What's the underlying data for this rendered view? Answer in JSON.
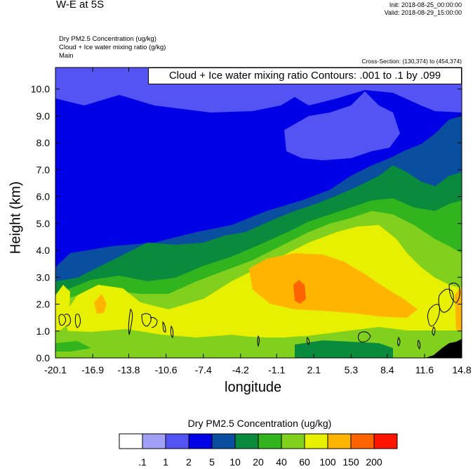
{
  "header": {
    "title": "W-E at 5S",
    "init": "Init: 2018-08-25_00:00:00",
    "valid": "Valid: 2018-08-29_15:00:00",
    "field_line_1": "Dry PM2.5 Concentration   (ug/kg)",
    "field_line_2": "Cloud + Ice water mixing ratio   (g/kg)",
    "field_line_3": "Main",
    "cross_section": "Cross-Section: (130,374) to (454,374)"
  },
  "contour_label": "Cloud + Ice water mixing ratio Contours: .001 to .1 by .099",
  "chart_data": {
    "type": "heatmap",
    "xlabel": "longitude",
    "ylabel": "Height (km)",
    "x_ticks": [
      "-20.1",
      "-16.9",
      "-13.8",
      "-10.6",
      "-7.4",
      "-4.2",
      "-1.1",
      "2.1",
      "5.3",
      "8.4",
      "11.6",
      "14.8"
    ],
    "y_ticks": [
      "0.0",
      "1.0",
      "2.0",
      "3.0",
      "4.0",
      "5.0",
      "6.0",
      "7.0",
      "8.0",
      "9.0",
      "10.0"
    ],
    "xlim": [
      -20.1,
      14.8
    ],
    "ylim": [
      0,
      10.8
    ],
    "colorbar": {
      "title": "Dry PM2.5 Concentration  (ug/kg)",
      "labels": [
        ".1",
        "1",
        "2",
        "5",
        "10",
        "20",
        "40",
        "60",
        "100",
        "150",
        "200"
      ],
      "colors": [
        "#ffffff",
        "#a0a0f6",
        "#5454f4",
        "#0000e6",
        "#0a4ea0",
        "#0a8a3c",
        "#32b41e",
        "#82d01e",
        "#e6f000",
        "#ffb400",
        "#ff6400",
        "#ff1400"
      ]
    }
  }
}
